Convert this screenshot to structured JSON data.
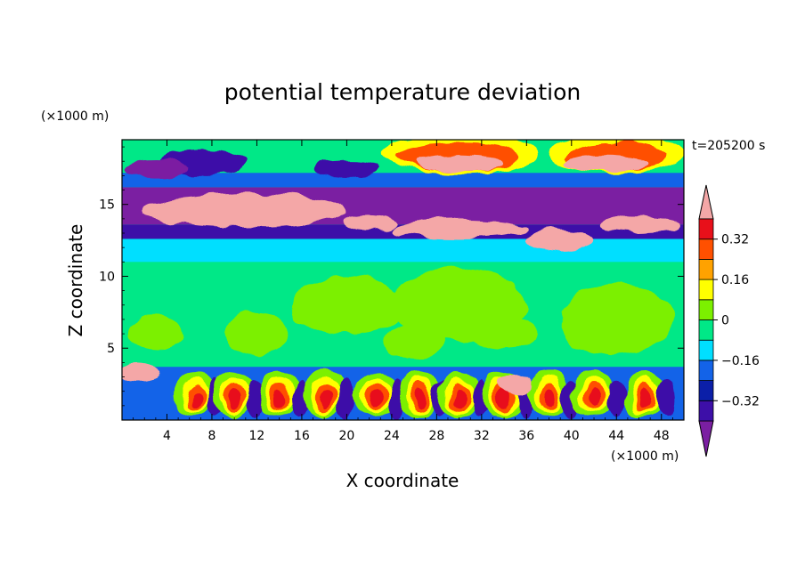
{
  "chart_data": {
    "type": "heatmap",
    "title": "potential temperature deviation",
    "xlabel": "X coordinate",
    "ylabel": "Z coordinate",
    "x_unit": "(×1000 m)",
    "y_unit": "(×1000 m)",
    "time_label": "t=205200 s",
    "xlim": [
      0,
      50
    ],
    "ylim": [
      0,
      19.5
    ],
    "x_ticks": [
      4,
      8,
      12,
      16,
      20,
      24,
      28,
      32,
      36,
      40,
      44,
      48
    ],
    "y_ticks": [
      5,
      10,
      15
    ],
    "colorbar": {
      "levels": [
        -0.4,
        -0.32,
        -0.24,
        -0.16,
        -0.08,
        0,
        0.08,
        0.16,
        0.24,
        0.32,
        0.4
      ],
      "labeled_levels": [
        "0.32",
        "0.16",
        "0",
        "−0.16",
        "−0.32"
      ],
      "colors": [
        "#7b1fa2",
        "#3d0fa8",
        "#0b1fa8",
        "#1363e8",
        "#00dfff",
        "#00e887",
        "#7cf000",
        "#ffff00",
        "#ffa200",
        "#ff5000",
        "#e8101a",
        "#f4a7a7"
      ]
    },
    "regions": [
      {
        "band": "z 0–3.7 km",
        "pattern": "alternating warm/cold cells"
      },
      {
        "band": "z 3.7–11 km",
        "pattern": "near zero"
      },
      {
        "band": "z 11–19.5 km",
        "pattern": "strong layered anomalies"
      }
    ]
  }
}
